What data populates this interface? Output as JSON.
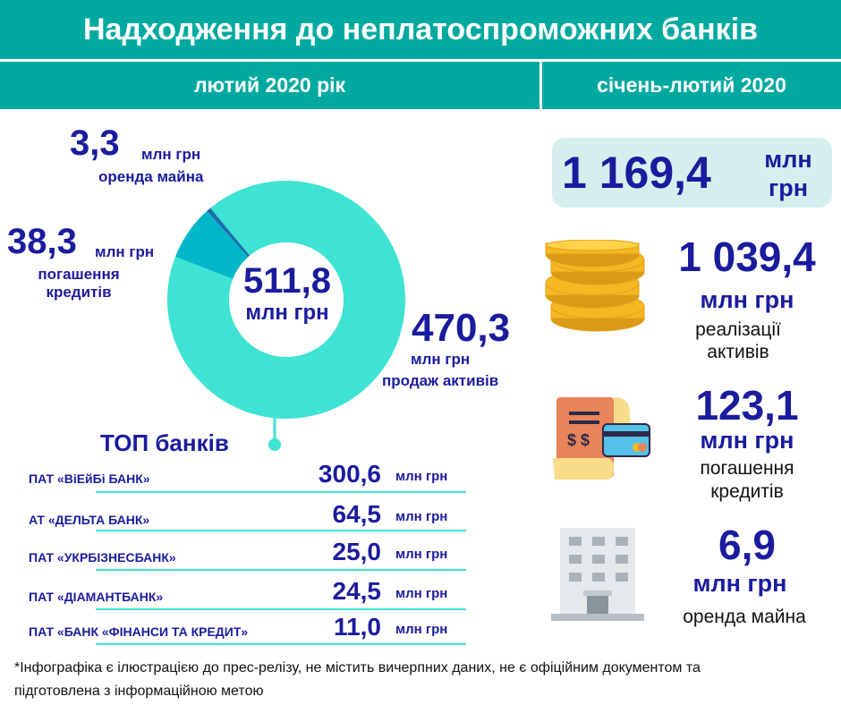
{
  "header": {
    "title": "Надходження до неплатоспроможних банків"
  },
  "periods": {
    "left": "лютий 2020 рік",
    "right": "січень-лютий 2020"
  },
  "chart_data": {
    "type": "pie",
    "center_value": "511,8",
    "center_unit": "млн грн",
    "slices": [
      {
        "label": "продаж активів",
        "value": 470.3,
        "display": "470,3",
        "unit": "млн грн",
        "color": "#3ee3d3"
      },
      {
        "label": "погашення кредитів",
        "value": 38.3,
        "display": "38,3",
        "unit": "млн грн",
        "color": "#00b8c9"
      },
      {
        "label": "оренда майна",
        "value": 3.3,
        "display": "3,3",
        "unit": "млн грн",
        "color": "#1a6fb0"
      }
    ]
  },
  "top_banks": {
    "title": "ТОП банків",
    "unit": "млн грн",
    "rows": [
      {
        "name": "ПАТ «ВіЕйБі БАНК»",
        "value": "300,6"
      },
      {
        "name": "АТ «ДЕЛЬТА БАНК»",
        "value": "64,5"
      },
      {
        "name": "ПАТ «УКРБІЗНЕСБАНК»",
        "value": "25,0"
      },
      {
        "name": "ПАТ «ДІАМАНТБАНК»",
        "value": "24,5"
      },
      {
        "name": "ПАТ «БАНК «ФІНАНСИ ТА КРЕДИТ»",
        "value": "11,0"
      }
    ]
  },
  "summary": {
    "total_value": "1 169,4",
    "total_unit_line1": "млн",
    "total_unit_line2": "грн",
    "items": [
      {
        "value": "1 039,4",
        "unit": "млн грн",
        "desc_line1": "реалізації",
        "desc_line2": "активів",
        "icon": "coins-icon"
      },
      {
        "value": "123,1",
        "unit": "млн грн",
        "desc_line1": "погашення",
        "desc_line2": "кредитів",
        "icon": "bill-card-icon"
      },
      {
        "value": "6,9",
        "unit": "млн грн",
        "desc_line1": "оренда майна",
        "icon": "building-icon"
      }
    ]
  },
  "footnote": {
    "line1": "*Інфографіка є ілюстрацією до прес-релізу, не містить вичерпних даних, не є офіційним документом та",
    "line2": "підготовлена з інформаційною метою"
  }
}
